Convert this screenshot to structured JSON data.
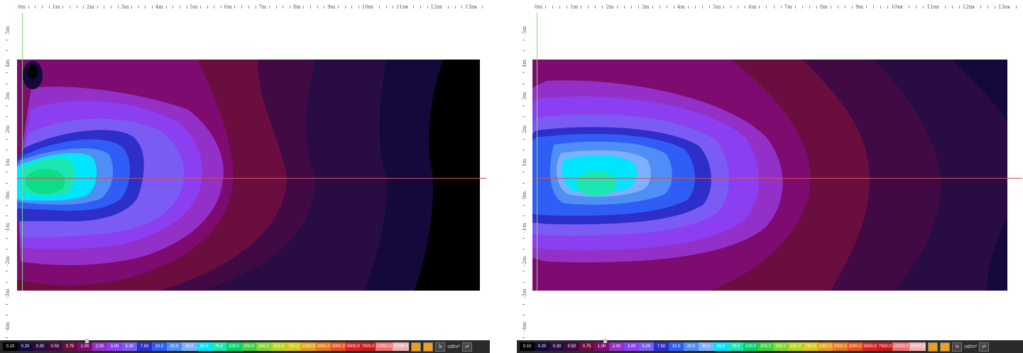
{
  "colors": {
    "background": "#ffffff",
    "colorbar_bg": "#2a2a2a",
    "guide_vertical": "#7fdc7f",
    "guide_horizontal": "#d05050"
  },
  "colorbar": {
    "swatches": [
      {
        "label": "0.10",
        "color": "#000000"
      },
      {
        "label": "0.20",
        "color": "#14093a"
      },
      {
        "label": "0.30",
        "color": "#2a0c45"
      },
      {
        "label": "0.50",
        "color": "#420a45"
      },
      {
        "label": "0.75",
        "color": "#6a0e3f"
      },
      {
        "label": "1.00",
        "color": "#7d0b70"
      },
      {
        "label": "2.00",
        "color": "#9330c8"
      },
      {
        "label": "3.00",
        "color": "#8b3ff0"
      },
      {
        "label": "5.00",
        "color": "#7a5cf5"
      },
      {
        "label": "7.50",
        "color": "#2e2ec8"
      },
      {
        "label": "10.0",
        "color": "#2f5df5"
      },
      {
        "label": "20.0",
        "color": "#4f8ff5"
      },
      {
        "label": "30.0",
        "color": "#7fb0ff"
      },
      {
        "label": "50.0",
        "color": "#00e5ff"
      },
      {
        "label": "75.0",
        "color": "#1ee6b0"
      },
      {
        "label": "100.0",
        "color": "#00d56a"
      },
      {
        "label": "200.0",
        "color": "#3fcf3f"
      },
      {
        "label": "300.0",
        "color": "#7fd62f"
      },
      {
        "label": "500.0",
        "color": "#b5d61f"
      },
      {
        "label": "750.0",
        "color": "#d8c81a"
      },
      {
        "label": "1000.0",
        "color": "#e8a018"
      },
      {
        "label": "2000.0",
        "color": "#e87818"
      },
      {
        "label": "3000.0",
        "color": "#e85018"
      },
      {
        "label": "5000.0",
        "color": "#d82020"
      },
      {
        "label": "7500.0",
        "color": "#c81818"
      },
      {
        "label": "10000.0",
        "color": "#f07070"
      },
      {
        "label": "15000.0",
        "color": "#f0b0b0"
      }
    ],
    "unit_button": "lx",
    "unit_label": "cd/m²",
    "icons": [
      "palette-icon",
      "palette-alt-icon",
      "swap-icon"
    ]
  },
  "left_panel": {
    "ruler_top": [
      "0m",
      "1m",
      "2m",
      "3m",
      "4m",
      "5m",
      "6m",
      "7m",
      "8m",
      "9m",
      "10m",
      "11m",
      "12m",
      "13m"
    ],
    "ruler_left": [
      "5m",
      "4m",
      "3m",
      "2m",
      "1m",
      "0m",
      "-1m",
      "-2m",
      "-3m",
      "-4m"
    ]
  },
  "right_panel": {
    "ruler_top": [
      "0m",
      "1m",
      "2m",
      "3m",
      "4m",
      "5m",
      "6m",
      "7m",
      "8m",
      "9m",
      "10m",
      "11m",
      "12m",
      "13m"
    ],
    "ruler_left": [
      "5m",
      "4m",
      "3m",
      "2m",
      "1m",
      "0m",
      "-1m",
      "-2m",
      "-3m",
      "-4m"
    ]
  }
}
